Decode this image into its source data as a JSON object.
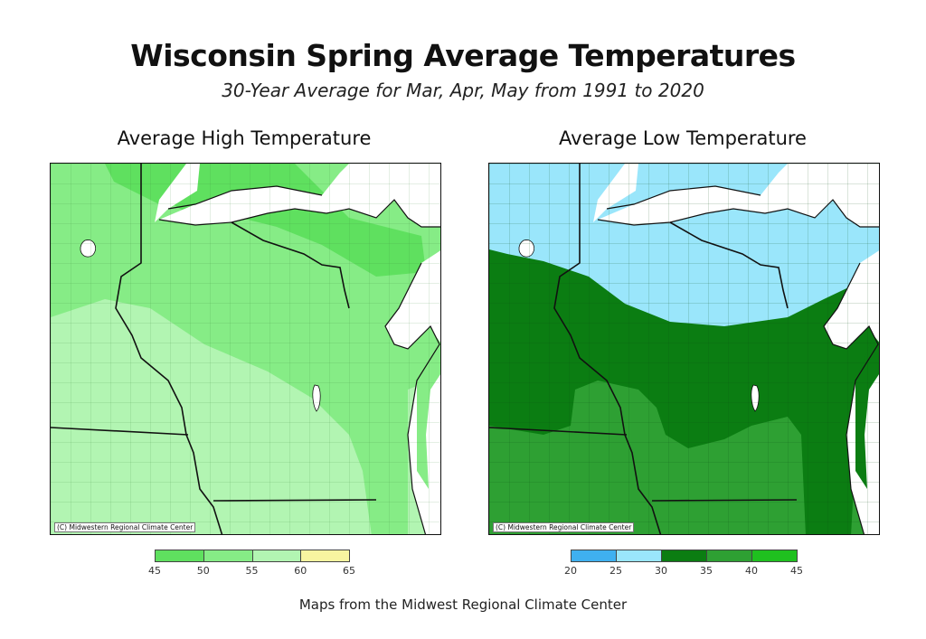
{
  "title": "Wisconsin Spring Average Temperatures",
  "subtitle": "30-Year Average for Mar, Apr, May from 1991 to 2020",
  "maps": [
    {
      "title": "Average High Temperature",
      "credit": "(C) Midwestern Regional Climate Center",
      "legend": {
        "ticks": [
          "45",
          "50",
          "55",
          "60",
          "65"
        ],
        "colors": [
          "#5fe05f",
          "#86ec86",
          "#b2f5b2",
          "#f8f4a0"
        ]
      }
    },
    {
      "title": "Average Low Temperature",
      "credit": "(C) Midwestern Regional Climate Center",
      "legend": {
        "ticks": [
          "20",
          "25",
          "30",
          "35",
          "40",
          "45"
        ],
        "colors": [
          "#3fb0f0",
          "#9ae6fb",
          "#0b7d12",
          "#2ea033",
          "#1fc01f"
        ]
      }
    }
  ],
  "footer": "Maps from the Midwest Regional Climate Center"
}
